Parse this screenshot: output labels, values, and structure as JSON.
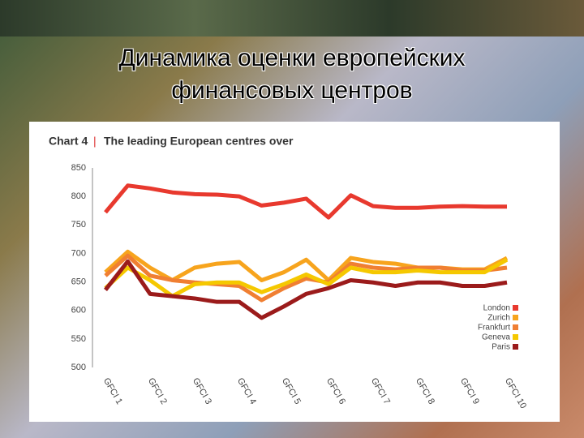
{
  "slide_title": [
    "Динамика оценки европейских",
    "финансовых центров"
  ],
  "chart_data": {
    "type": "line",
    "label": "Chart 4",
    "title": "The leading European centres over",
    "categories": [
      "GFCI 1",
      null,
      "GFCI 2",
      null,
      "GFCI 3",
      null,
      "GFCI 4",
      null,
      "GFCI 5",
      null,
      "GFCI 6",
      null,
      "GFCI 7",
      null,
      "GFCI 8",
      null,
      "GFCI 9",
      null,
      "GFCI 10"
    ],
    "ylim": [
      500,
      850
    ],
    "yticks": [
      500,
      550,
      600,
      650,
      700,
      750,
      800,
      850
    ],
    "grid": false,
    "legend": "lower right",
    "series": [
      {
        "name": "London",
        "color": "#e8392e",
        "values": [
          772,
          819,
          814,
          807,
          804,
          803,
          800,
          784,
          789,
          796,
          763,
          802,
          783,
          780,
          780,
          782,
          783,
          782,
          782
        ]
      },
      {
        "name": "Zurich",
        "color": "#f7a41d",
        "values": [
          667,
          703,
          675,
          653,
          675,
          682,
          685,
          653,
          667,
          689,
          653,
          692,
          685,
          682,
          675,
          675,
          672,
          672,
          692
        ]
      },
      {
        "name": "Frankfurt",
        "color": "#f07f32",
        "values": [
          661,
          696,
          661,
          653,
          649,
          646,
          643,
          618,
          639,
          656,
          649,
          682,
          675,
          672,
          675,
          675,
          670,
          670,
          675
        ]
      },
      {
        "name": "Geneva",
        "color": "#f5c800",
        "values": [
          639,
          675,
          653,
          625,
          646,
          649,
          649,
          632,
          646,
          663,
          646,
          675,
          667,
          667,
          670,
          667,
          667,
          667,
          689
        ]
      },
      {
        "name": "Paris",
        "color": "#9b1b1b",
        "values": [
          636,
          686,
          629,
          625,
          621,
          615,
          615,
          587,
          607,
          629,
          639,
          653,
          649,
          643,
          649,
          649,
          643,
          643,
          649
        ]
      }
    ]
  }
}
